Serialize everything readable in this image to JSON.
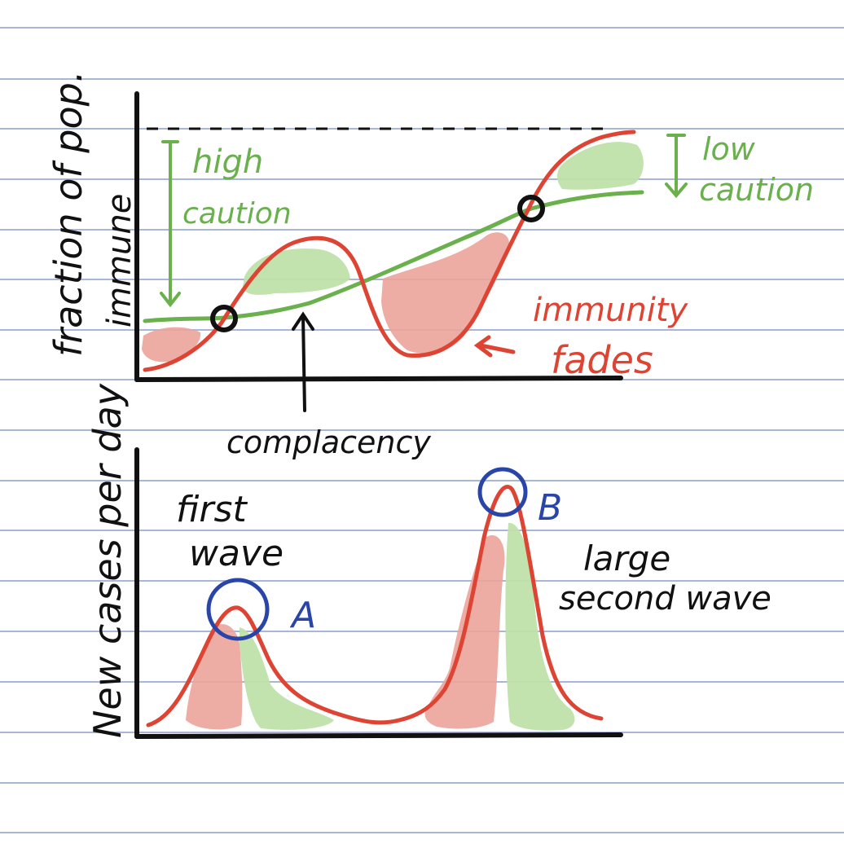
{
  "colors": {
    "paper": "#ffffff",
    "rule_line": "#a9b7d6",
    "ink": "#111111",
    "green": "#6ab04c",
    "green_fill": "#bfe0aa",
    "red": "#dd4433",
    "red_fill": "#eba39a",
    "blue": "#2a45a8"
  },
  "top_panel": {
    "y_axis_label_line1": "fraction of pop.",
    "y_axis_label_line2": "immune",
    "annotations": {
      "high_caution_line1": "high",
      "high_caution_line2": "caution",
      "low_caution_line1": "low",
      "low_caution_line2": "caution",
      "immunity_fades_line1": "immunity",
      "immunity_fades_line2": "fades",
      "complacency": "complacency"
    }
  },
  "bottom_panel": {
    "y_axis_label": "New cases per day",
    "annotations": {
      "first_wave_line1": "first",
      "first_wave_line2": "wave",
      "large_second_wave_line1": "large",
      "large_second_wave_line2": "second wave",
      "marker_a": "A",
      "marker_b": "B"
    }
  }
}
